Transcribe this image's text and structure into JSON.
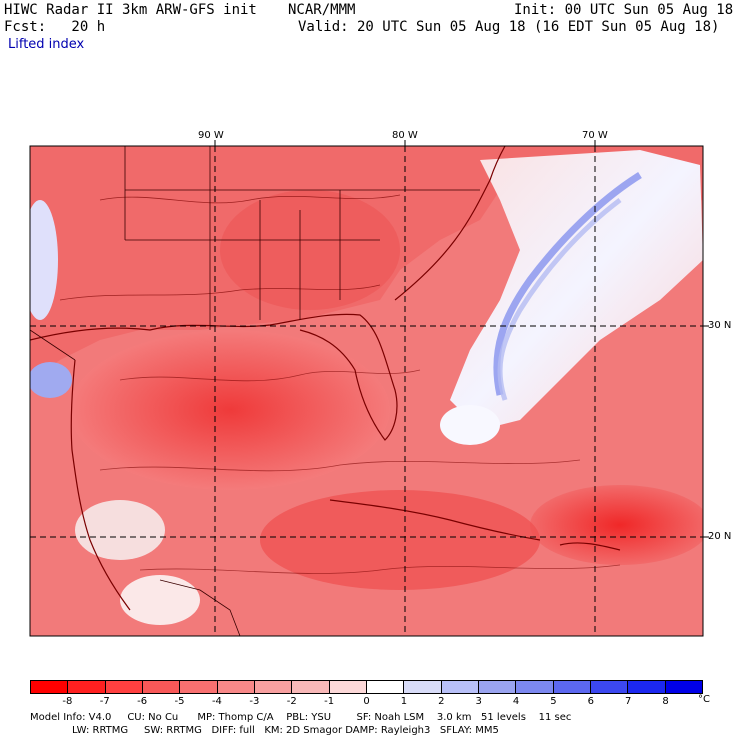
{
  "header": {
    "model_title": "HIWC Radar II 3km ARW-GFS init",
    "center": "NCAR/MMM",
    "init_time": "Init: 00 UTC Sun 05 Aug 18",
    "forecast_label": "Fcst:   20 h",
    "valid_time": "Valid: 20 UTC Sun 05 Aug 18 (16 EDT Sun 05 Aug 18)",
    "field_name": "Lifted index"
  },
  "map": {
    "lon_labels": [
      "90 W",
      "80 W",
      "70 W"
    ],
    "lat_labels": [
      "30 N",
      "20 N"
    ],
    "colors": {
      "ocean_mid": "#f08080",
      "land_mid": "#f26a6a",
      "warm_core": "#f03030",
      "stable_blue": "#a8b4f0",
      "boundary": "#7a0000"
    }
  },
  "colorbar": {
    "ticks": [
      "-8",
      "-7",
      "-6",
      "-5",
      "-4",
      "-3",
      "-2",
      "-1",
      "0",
      "1",
      "2",
      "3",
      "4",
      "5",
      "6",
      "7",
      "8"
    ],
    "unit": "°C",
    "colors": [
      "#ff0000",
      "#ff2020",
      "#ff4040",
      "#f85858",
      "#f87070",
      "#f88888",
      "#f8a0a0",
      "#f8b8b8",
      "#fcd8d8",
      "#ffffff",
      "#d8dcf8",
      "#b8c0f8",
      "#9aa4f0",
      "#7c88f0",
      "#5c68f0",
      "#3c48f0",
      "#1c28f0",
      "#0000e8"
    ]
  },
  "footer": {
    "line1": "Model Info: V4.0     CU: No Cu      MP: Thomp C/A    PBL: YSU        SF: Noah LSM    3.0 km   51 levels    11 sec",
    "line2": "LW: RRTMG     SW: RRTMG   DIFF: full   KM: 2D Smagor DAMP: Rayleigh3   SFLAY: MM5"
  }
}
